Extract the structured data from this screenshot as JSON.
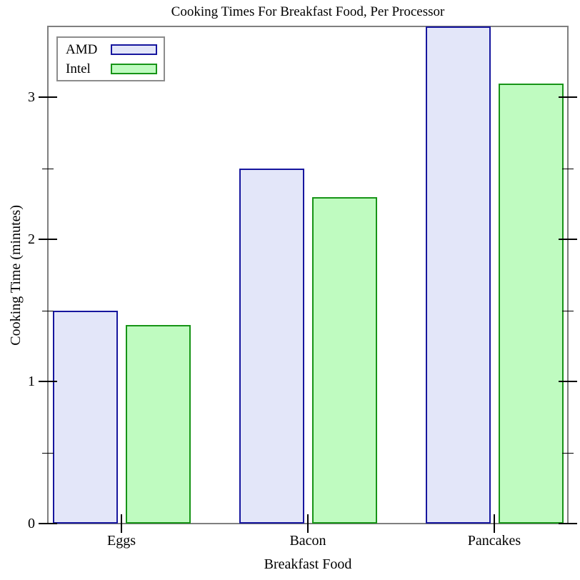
{
  "chart_data": {
    "type": "bar",
    "title": "Cooking Times For Breakfast Food, Per Processor",
    "xlabel": "Breakfast Food",
    "ylabel": "Cooking Time (minutes)",
    "categories": [
      "Eggs",
      "Bacon",
      "Pancakes"
    ],
    "series": [
      {
        "name": "AMD",
        "values": [
          1.5,
          2.5,
          3.5
        ],
        "fill": "#e3e6f9",
        "stroke": "#16169e"
      },
      {
        "name": "Intel",
        "values": [
          1.4,
          2.3,
          3.1
        ],
        "fill": "#bffbc0",
        "stroke": "#179417"
      }
    ],
    "ylim": [
      0,
      3.5
    ],
    "yticks": [
      0,
      1,
      2,
      3
    ],
    "yminor_step": 0.5,
    "grid": false,
    "legend_position": "top-left",
    "frame_color": "#7f7f7f",
    "tick_color": "#000000"
  }
}
